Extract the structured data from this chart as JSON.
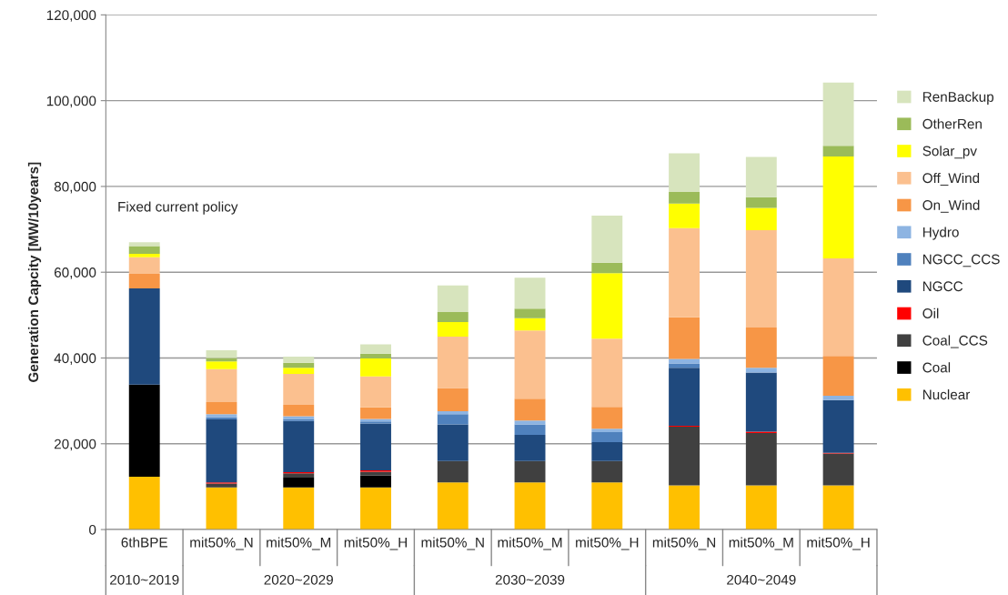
{
  "chart_data": {
    "type": "bar",
    "stacked": true,
    "ylabel": "Generation Capcity [MW/10years]",
    "categories": [
      "6thBPE",
      "mit50%_N",
      "mit50%_M",
      "mit50%_H",
      "mit50%_N",
      "mit50%_M",
      "mit50%_H",
      "mit50%_N",
      "mit50%_M",
      "mit50%_H"
    ],
    "series": [
      {
        "name": "Nuclear",
        "color": "#ffc000",
        "values": [
          12300,
          9800,
          9800,
          9800,
          11000,
          11000,
          11000,
          10300,
          10300,
          10300
        ]
      },
      {
        "name": "Coal",
        "color": "#000000",
        "values": [
          21500,
          0,
          2300,
          2800,
          0,
          0,
          0,
          0,
          0,
          0
        ]
      },
      {
        "name": "Coal_CCS",
        "color": "#404040",
        "values": [
          0,
          900,
          1000,
          900,
          5000,
          5000,
          5000,
          13700,
          12200,
          7400
        ]
      },
      {
        "name": "Oil",
        "color": "#ff0000",
        "values": [
          0,
          300,
          300,
          300,
          0,
          0,
          0,
          200,
          300,
          200
        ]
      },
      {
        "name": "NGCC",
        "color": "#1f497d",
        "values": [
          22400,
          14700,
          11900,
          10900,
          8500,
          6100,
          4400,
          13500,
          13800,
          12300
        ]
      },
      {
        "name": "NGCC_CCS",
        "color": "#4f81bd",
        "values": [
          0,
          500,
          500,
          500,
          2400,
          2400,
          2300,
          1000,
          0,
          0
        ]
      },
      {
        "name": "Hydro",
        "color": "#8db4e2",
        "values": [
          0,
          700,
          600,
          600,
          700,
          900,
          800,
          1100,
          1100,
          1000
        ]
      },
      {
        "name": "On_Wind",
        "color": "#f79646",
        "values": [
          3400,
          2800,
          2700,
          2700,
          5400,
          5100,
          5100,
          9700,
          9400,
          9300
        ]
      },
      {
        "name": "Off_Wind",
        "color": "#fbc08f",
        "values": [
          3900,
          7700,
          7200,
          7200,
          12000,
          15900,
          15900,
          20800,
          22700,
          22700
        ]
      },
      {
        "name": "Solar_pv",
        "color": "#ffff00",
        "values": [
          800,
          1800,
          1400,
          4200,
          3400,
          2900,
          15300,
          5700,
          5200,
          23800
        ]
      },
      {
        "name": "OtherRen",
        "color": "#9bbb59",
        "values": [
          1800,
          800,
          1200,
          1100,
          2300,
          2200,
          2400,
          2700,
          2500,
          2500
        ]
      },
      {
        "name": "RenBackup",
        "color": "#d7e4bd",
        "values": [
          900,
          1800,
          1400,
          2200,
          6200,
          7200,
          11000,
          9000,
          9400,
          14700
        ]
      }
    ],
    "ylim": [
      0,
      120000
    ],
    "yticks": [
      0,
      {
        "value": 20000,
        "label": "20,000"
      },
      {
        "value": 40000,
        "label": "40,000"
      },
      {
        "value": 60000,
        "label": "60,000"
      },
      {
        "value": 80000,
        "label": "80,000"
      },
      {
        "value": 100000,
        "label": "100,000"
      },
      {
        "value": 120000,
        "label": "120,000"
      }
    ],
    "grid": "y",
    "legend": "right",
    "annotations": [
      "Fixed current policy",
      "2010~2019",
      "2020~2029",
      "2030~2039",
      "2040~2049"
    ]
  }
}
